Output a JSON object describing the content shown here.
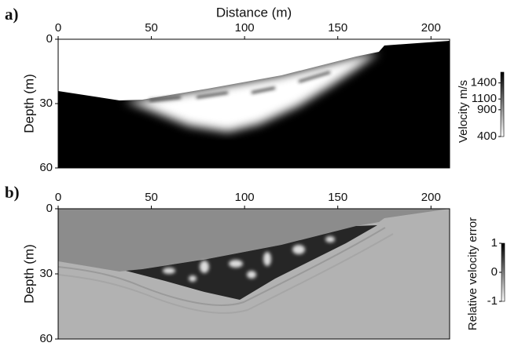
{
  "chart_data": [
    {
      "type": "image",
      "panel_label": "a)",
      "x_label": "Distance (m)",
      "y_label": "Depth (m)",
      "xlim": [
        0,
        210
      ],
      "xticks": [
        0,
        50,
        100,
        150,
        200
      ],
      "ylim": [
        0,
        60
      ],
      "yticks": [
        0,
        30,
        60
      ],
      "y_inverted": true,
      "colorbar": {
        "label": "Velocity m/s",
        "lim": [
          400,
          1600
        ],
        "ticks": [
          400,
          900,
          1100,
          1400
        ],
        "colors": [
          "#ffffff",
          "#000000"
        ]
      }
    },
    {
      "type": "image",
      "panel_label": "b)",
      "y_label": "Depth (m)",
      "xlim": [
        0,
        210
      ],
      "xticks": [
        0,
        50,
        100,
        150,
        200
      ],
      "ylim": [
        0,
        60
      ],
      "yticks": [
        0,
        30,
        60
      ],
      "y_inverted": true,
      "colorbar": {
        "label": "Relative velocity error",
        "lim": [
          -1,
          1
        ],
        "ticks": [
          -1,
          0,
          1
        ],
        "colors": [
          "#ffffff",
          "#000000"
        ]
      }
    }
  ]
}
